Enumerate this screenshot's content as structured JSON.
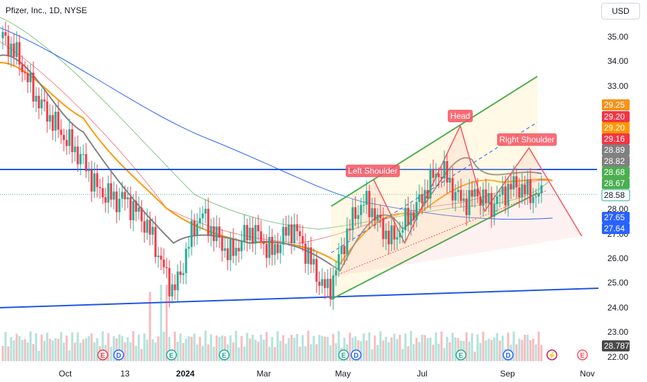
{
  "chart_data": {
    "type": "candlestick",
    "title": "Pfizer, Inc., 1D, NYSE",
    "currency": "USD",
    "y_ticks": [
      "35.00",
      "34.00",
      "33.00",
      "28.00",
      "27.00",
      "26.00",
      "25.00",
      "24.00",
      "23.00",
      "22.00"
    ],
    "x_ticks": [
      "Oct",
      "13",
      "2024",
      "Mar",
      "May",
      "Jul",
      "Sep",
      "Nov"
    ],
    "ylim": [
      21.8,
      35.6
    ],
    "price_labels": [
      {
        "text": "29.25",
        "color": "#f7931a",
        "value": 29.25
      },
      {
        "text": "29.20",
        "color": "#f23645",
        "value": 29.2
      },
      {
        "text": "29.20",
        "color": "#ff9800",
        "value": 29.2
      },
      {
        "text": "29.16",
        "color": "#f23645",
        "value": 29.16
      },
      {
        "text": "28.89",
        "color": "#808080",
        "value": 28.89
      },
      {
        "text": "28.82",
        "color": "#808080",
        "value": 28.82
      },
      {
        "text": "28.68",
        "color": "#4caf50",
        "value": 28.68
      },
      {
        "text": "28.67",
        "color": "#4caf50",
        "value": 28.67
      },
      {
        "text": "28.58",
        "color": "#ffffff",
        "value": 28.58
      },
      {
        "text": "27.65",
        "color": "#2962ff",
        "value": 27.65
      },
      {
        "text": "27.64",
        "color": "#2962ff",
        "value": 27.64
      },
      {
        "text": "28.787 M",
        "color": "#4a4a4a",
        "value": 28.787
      }
    ],
    "annotations": [
      "Left Shoulder",
      "Head",
      "Right Shoulder"
    ],
    "series": [
      {
        "name": "price",
        "values": [
          34.9,
          34.6,
          34.2,
          33.6,
          32.9,
          32.4,
          32.0,
          31.6,
          31.2,
          30.8,
          30.5,
          30.1,
          29.6,
          29.0,
          28.7,
          28.6,
          28.4,
          28.5,
          28.2,
          27.9,
          27.5,
          27.0,
          26.2,
          25.4,
          24.8,
          25.3,
          26.5,
          27.3,
          27.9,
          27.4,
          27.0,
          26.6,
          26.2,
          26.5,
          26.9,
          27.2,
          27.0,
          26.6,
          26.3,
          26.7,
          27.1,
          27.3,
          26.8,
          26.2,
          25.6,
          25.0,
          24.8,
          25.6,
          26.6,
          27.4,
          28.0,
          28.3,
          28.1,
          27.5,
          27.1,
          26.8,
          27.2,
          27.6,
          28.0,
          28.4,
          29.0,
          29.4,
          29.6,
          29.1,
          28.6,
          28.3,
          28.5,
          28.7,
          28.4,
          28.2,
          28.5,
          28.8,
          29.0,
          28.9,
          28.7,
          28.6,
          28.58
        ]
      }
    ],
    "volume_label": "28.787 M"
  },
  "ui": {
    "event_markers": [
      {
        "kind": "earnings",
        "letter": "E",
        "color": "#f23645",
        "x": 148
      },
      {
        "kind": "dividend",
        "letter": "D",
        "color": "#2962ff",
        "x": 171
      },
      {
        "kind": "earnings",
        "letter": "E",
        "color": "#22ab94",
        "x": 247
      },
      {
        "kind": "earnings",
        "letter": "E",
        "color": "#22ab94",
        "x": 323
      },
      {
        "kind": "earnings",
        "letter": "E",
        "color": "#22ab94",
        "x": 495
      },
      {
        "kind": "dividend",
        "letter": "D",
        "color": "#2962ff",
        "x": 513
      },
      {
        "kind": "earnings",
        "letter": "E",
        "color": "#22ab94",
        "x": 664
      },
      {
        "kind": "dividend",
        "letter": "D",
        "color": "#2962ff",
        "x": 732
      },
      {
        "kind": "flash",
        "letter": "⚡",
        "color": "#c2185b",
        "x": 795
      },
      {
        "kind": "earnings",
        "letter": "E",
        "color": "#f7525f",
        "x": 839
      }
    ]
  }
}
